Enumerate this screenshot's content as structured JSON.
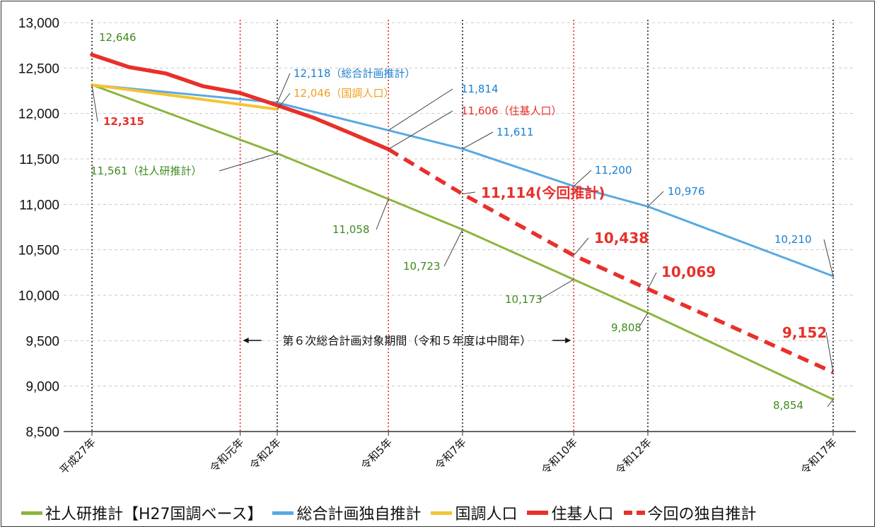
{
  "chart_data": {
    "type": "line",
    "title": "",
    "xlabel": "",
    "ylabel": "",
    "ylim": [
      8500,
      13000
    ],
    "yticks": [
      "8,500",
      "9,000",
      "9,500",
      "10,000",
      "10,500",
      "11,000",
      "11,500",
      "12,000",
      "12,500",
      "13,000"
    ],
    "ytick_values": [
      8500,
      9000,
      9500,
      10000,
      10500,
      11000,
      11500,
      12000,
      12500,
      13000
    ],
    "xlim": [
      2015,
      2035
    ],
    "xticks": [
      {
        "label": "平成27年",
        "year": 2015
      },
      {
        "label": "令和元年",
        "year": 2019
      },
      {
        "label": "令和2年",
        "year": 2020
      },
      {
        "label": "令和5年",
        "year": 2023
      },
      {
        "label": "令和7年",
        "year": 2025
      },
      {
        "label": "令和10年",
        "year": 2028
      },
      {
        "label": "令和12年",
        "year": 2030
      },
      {
        "label": "令和17年",
        "year": 2035
      }
    ],
    "grid": true,
    "legend_position": "bottom",
    "series": [
      {
        "name": "社人研推計【H27国調ベース】",
        "color": "#8cb53d",
        "style": "solid",
        "points": [
          [
            2015,
            12315
          ],
          [
            2020,
            11561
          ],
          [
            2023,
            11058
          ],
          [
            2025,
            10723
          ],
          [
            2028,
            10173
          ],
          [
            2030,
            9808
          ],
          [
            2035,
            8854
          ]
        ]
      },
      {
        "name": "総合計画独自推計",
        "color": "#59a9e2",
        "style": "solid",
        "points": [
          [
            2015,
            12315
          ],
          [
            2020,
            12118
          ],
          [
            2023,
            11814
          ],
          [
            2025,
            11611
          ],
          [
            2028,
            11200
          ],
          [
            2030,
            10976
          ],
          [
            2035,
            10210
          ]
        ]
      },
      {
        "name": "国調人口",
        "color": "#f5c431",
        "style": "solid",
        "points": [
          [
            2015,
            12315
          ],
          [
            2020,
            12046
          ]
        ]
      },
      {
        "name": "住基人口",
        "color": "#e8302a",
        "style": "solid",
        "points": [
          [
            2015,
            12646
          ],
          [
            2016,
            12510
          ],
          [
            2017,
            12440
          ],
          [
            2018,
            12300
          ],
          [
            2019,
            12225
          ],
          [
            2020,
            12090
          ],
          [
            2021,
            11950
          ],
          [
            2022,
            11780
          ],
          [
            2023,
            11606
          ]
        ]
      },
      {
        "name": "今回の独自推計",
        "color": "#e8302a",
        "style": "dashed",
        "points": [
          [
            2023,
            11606
          ],
          [
            2025,
            11114
          ],
          [
            2028,
            10438
          ],
          [
            2030,
            10069
          ],
          [
            2035,
            9152
          ]
        ]
      }
    ],
    "annotations": [
      {
        "text": "12,646",
        "color": "#3f8a1e"
      },
      {
        "text": "12,315",
        "color": "#e8302a"
      },
      {
        "text": "12,118（総合計画推計）",
        "color": "#1a7fd0"
      },
      {
        "text": "12,046（国調人口）",
        "color": "#f0a020"
      },
      {
        "text": "11,814",
        "color": "#1a7fd0"
      },
      {
        "text": "11,606（住基人口）",
        "color": "#e8302a"
      },
      {
        "text": "11,611",
        "color": "#1a7fd0"
      },
      {
        "text": "11,561（社人研推計）",
        "color": "#3f8a1e"
      },
      {
        "text": "11,200",
        "color": "#1a7fd0"
      },
      {
        "text": "10,976",
        "color": "#1a7fd0"
      },
      {
        "text": "11,114(今回推計)",
        "color": "#e8302a"
      },
      {
        "text": "11,058",
        "color": "#3f8a1e"
      },
      {
        "text": "10,438",
        "color": "#e8302a"
      },
      {
        "text": "10,723",
        "color": "#3f8a1e"
      },
      {
        "text": "10,210",
        "color": "#1a7fd0"
      },
      {
        "text": "10,069",
        "color": "#e8302a"
      },
      {
        "text": "10,173",
        "color": "#3f8a1e"
      },
      {
        "text": "9,808",
        "color": "#3f8a1e"
      },
      {
        "text": "9,152",
        "color": "#e8302a"
      },
      {
        "text": "8,854",
        "color": "#3f8a1e"
      }
    ],
    "period_note": "第６次総合計画対象期間（令和５年度は中間年）",
    "period_start_year": 2019,
    "period_end_year": 2028,
    "period_marker_color": "#e8302a"
  },
  "legend": {
    "items": [
      {
        "label": "社人研推計【H27国調ベース】",
        "color": "#8cb53d",
        "style": "solid"
      },
      {
        "label": "総合計画独自推計",
        "color": "#59a9e2",
        "style": "solid"
      },
      {
        "label": "国調人口",
        "color": "#f5c431",
        "style": "solid"
      },
      {
        "label": "住基人口",
        "color": "#e8302a",
        "style": "solid"
      },
      {
        "label": "今回の独自推計",
        "color": "#e8302a",
        "style": "dashed"
      }
    ]
  }
}
